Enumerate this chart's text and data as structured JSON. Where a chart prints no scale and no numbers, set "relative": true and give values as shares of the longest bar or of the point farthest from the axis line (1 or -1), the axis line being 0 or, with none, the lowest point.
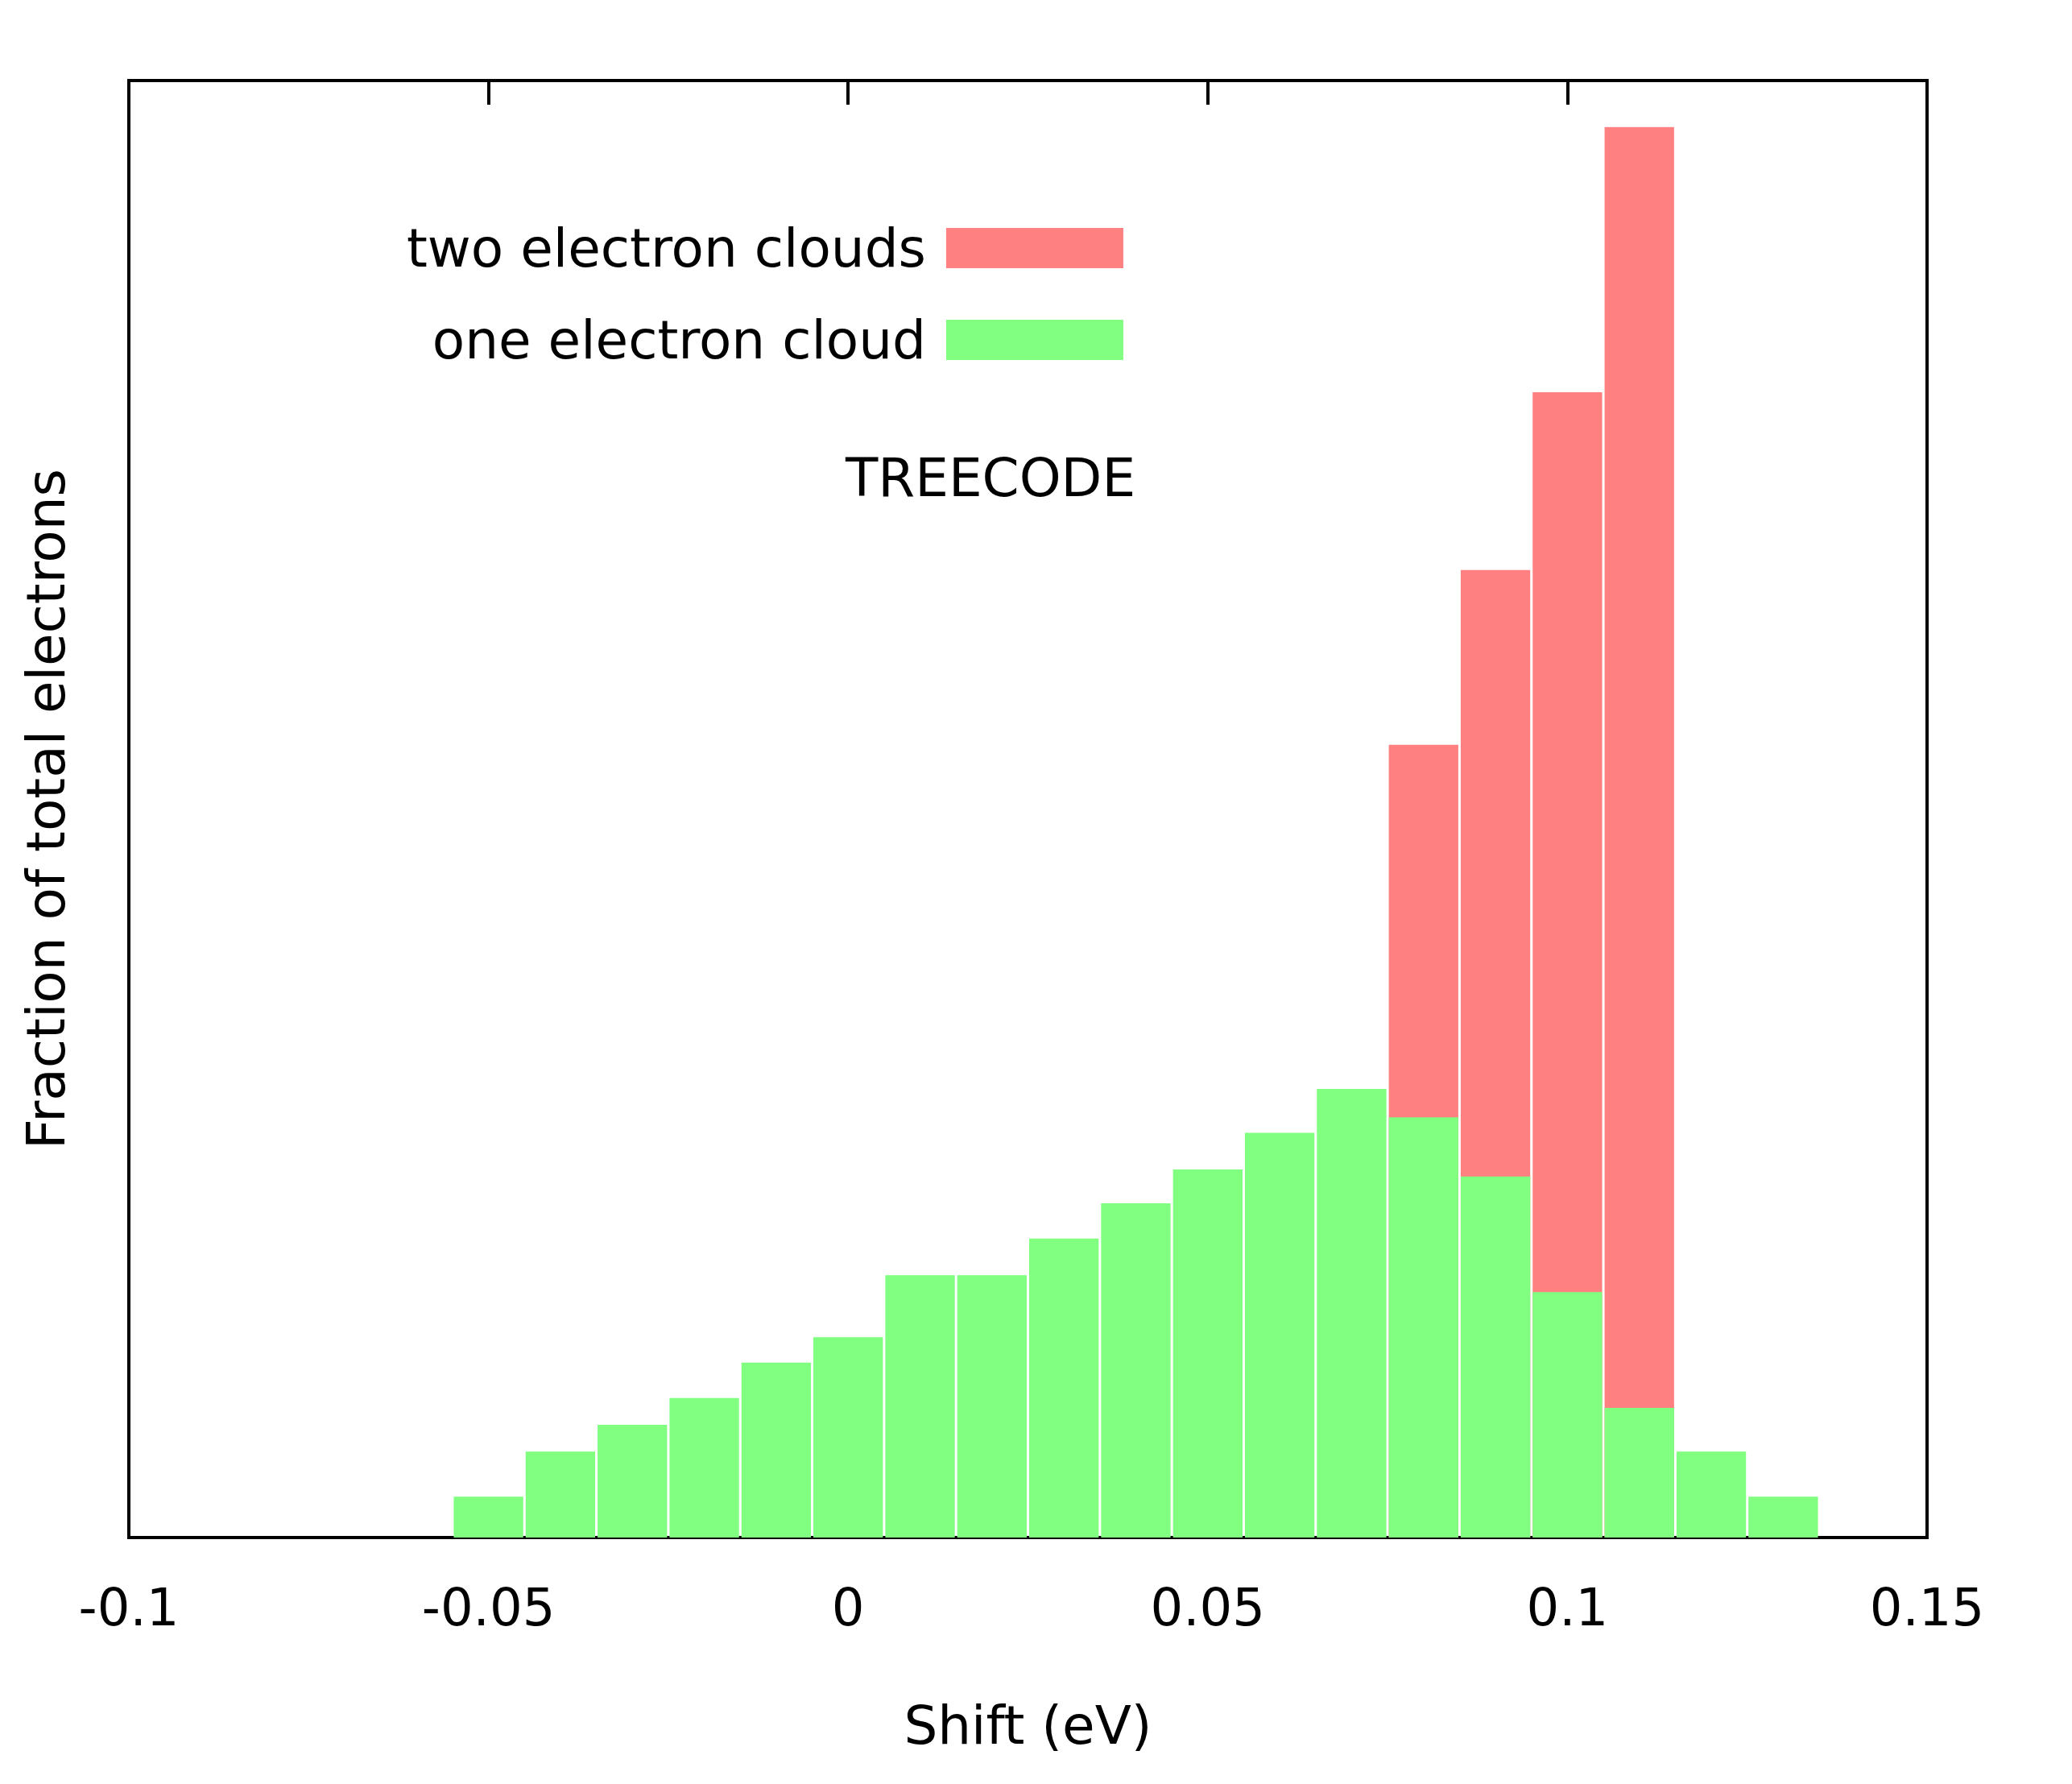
{
  "chart_data": {
    "type": "bar",
    "xlabel": "Shift (eV)",
    "ylabel": "Fraction of total electrons",
    "relative": true,
    "series": [
      {
        "name": "two electron clouds",
        "color": "#ff8080",
        "x": [
          0.08,
          0.09,
          0.1,
          0.11
        ],
        "values": [
          0.562,
          0.686,
          0.812,
          1
        ]
      },
      {
        "name": "one electron cloud",
        "color": "#80ff80",
        "x": [
          -0.05,
          -0.04,
          -0.03,
          -0.02,
          -0.01,
          0,
          0.01,
          0.02,
          0.03,
          0.04,
          0.05,
          0.06,
          0.07,
          0.08,
          0.09,
          0.1,
          0.11,
          0.12,
          0.13
        ],
        "values": [
          0.029,
          0.061,
          0.08,
          0.099,
          0.124,
          0.142,
          0.186,
          0.186,
          0.212,
          0.237,
          0.261,
          0.287,
          0.318,
          0.298,
          0.256,
          0.174,
          0.092,
          0.061,
          0.029
        ]
      }
    ],
    "xlim": [
      -0.1,
      0.15
    ],
    "xticks": [
      -0.1,
      -0.05,
      0,
      0.05,
      0.1,
      0.15
    ],
    "legend": "top left",
    "grid": false,
    "annotations": [
      "TREECODE"
    ]
  }
}
